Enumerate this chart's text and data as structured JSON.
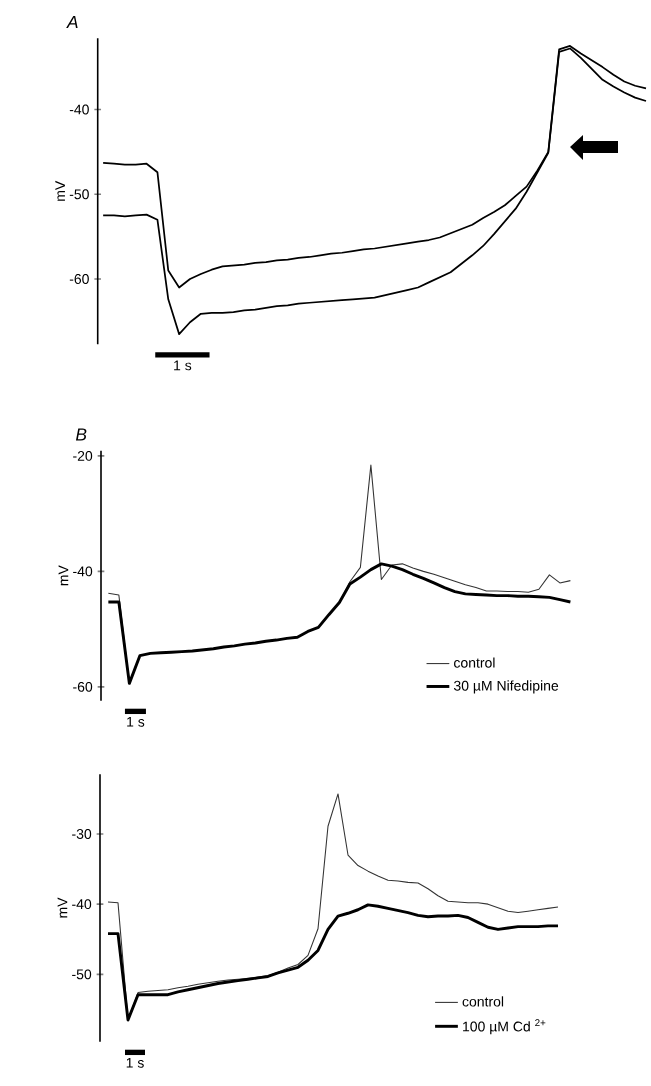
{
  "chart_data": [
    {
      "type": "line",
      "title": "A",
      "ylabel": "mV",
      "ylim": [
        -67.7,
        -31.6
      ],
      "yticks": [
        -60,
        -50,
        -40
      ],
      "tick_labels": "y",
      "annotations": [
        "1 s"
      ],
      "categories": [
        null,
        null,
        null,
        null,
        null,
        null,
        null,
        null,
        null,
        null,
        null,
        null,
        null,
        null,
        null,
        null,
        null,
        null,
        null,
        null,
        null,
        null,
        null,
        null,
        null,
        null,
        null,
        null,
        null,
        null,
        null,
        null,
        null,
        null,
        null,
        null,
        null,
        null,
        null,
        null,
        null,
        null,
        null,
        null,
        null,
        null,
        null,
        null,
        null,
        null,
        null
      ],
      "series": [
        {
          "color": "#000000",
          "values": [
            -46.3,
            -46.4,
            -46.5,
            -46.5,
            -46.4,
            -47.4,
            -59,
            -61.0,
            -60.0,
            -59.4,
            -58.9,
            -58.5,
            -58.4,
            -58.3,
            -58.1,
            -58.0,
            -57.8,
            -57.7,
            -57.5,
            -57.4,
            -57.2,
            -57.0,
            -56.9,
            -56.7,
            -56.5,
            -56.4,
            -56.2,
            -56.0,
            -55.8,
            -55.6,
            -55.4,
            -55.1,
            -54.6,
            -54.1,
            -53.6,
            -52.8,
            -52.1,
            -51.3,
            -50.2,
            -49.1,
            -47.2,
            -45.0,
            -32.9,
            -32.5,
            -33.4,
            -34.2,
            -35.0,
            -35.9,
            -36.7,
            -37.2,
            -37.5
          ]
        },
        {
          "color": "#000000",
          "values": [
            -52.5,
            -52.5,
            -52.6,
            -52.5,
            -52.4,
            -53.0,
            -62.4,
            -66.5,
            -65.1,
            -64.1,
            -64.0,
            -64.0,
            -63.9,
            -63.7,
            -63.6,
            -63.4,
            -63.2,
            -63.1,
            -62.9,
            -62.8,
            -62.7,
            -62.6,
            -62.5,
            -62.4,
            -62.3,
            -62.2,
            -61.9,
            -61.6,
            -61.3,
            -61.0,
            -60.4,
            -59.8,
            -59.2,
            -58.2,
            -57.2,
            -56.1,
            -54.7,
            -53.2,
            -51.7,
            -49.7,
            -47.4,
            -45.1,
            -33.2,
            -32.8,
            -33.9,
            -35.2,
            -36.5,
            -37.3,
            -38.0,
            -38.6,
            -39.0
          ]
        }
      ]
    },
    {
      "type": "line",
      "title": "B",
      "ylabel": "mV",
      "ylim": [
        -62.4,
        -19.1
      ],
      "yticks": [
        -60,
        -40,
        -20
      ],
      "tick_labels": "y",
      "legend": "bottom right",
      "annotations": [
        "1 s"
      ],
      "categories": [
        null,
        null,
        null,
        null,
        null,
        null,
        null,
        null,
        null,
        null,
        null,
        null,
        null,
        null,
        null,
        null,
        null,
        null,
        null,
        null,
        null,
        null,
        null,
        null,
        null,
        null,
        null,
        null,
        null,
        null,
        null,
        null,
        null,
        null,
        null,
        null,
        null,
        null,
        null,
        null,
        null,
        null,
        null,
        null,
        null
      ],
      "series": [
        {
          "name": "control",
          "color": "#333333",
          "values": [
            -43.8,
            -44.1,
            -59.4,
            -54.6,
            -54.2,
            -54.1,
            -54.0,
            -53.9,
            -53.8,
            -53.6,
            -53.4,
            -53.1,
            -52.9,
            -52.6,
            -52.4,
            -52.1,
            -51.9,
            -51.6,
            -51.4,
            -50.4,
            -49.7,
            -47.5,
            -45.4,
            -41.8,
            -39.3,
            -21.6,
            -41.4,
            -38.9,
            -38.7,
            -39.4,
            -40.0,
            -40.5,
            -41.1,
            -41.7,
            -42.3,
            -42.8,
            -43.4,
            -43.4,
            -43.5,
            -43.5,
            -43.6,
            -43.1,
            -40.6,
            -42.0,
            -41.6
          ]
        },
        {
          "name": "30 µM Nifedipine",
          "color": "#000000",
          "values": [
            -45.3,
            -45.3,
            -59.4,
            -54.6,
            -54.2,
            -54.1,
            -54.0,
            -53.9,
            -53.8,
            -53.6,
            -53.4,
            -53.1,
            -52.9,
            -52.6,
            -52.4,
            -52.1,
            -51.9,
            -51.6,
            -51.4,
            -50.4,
            -49.7,
            -47.5,
            -45.4,
            -42.2,
            -41.0,
            -39.7,
            -38.7,
            -39.1,
            -39.7,
            -40.5,
            -41.2,
            -42.0,
            -42.8,
            -43.5,
            -43.9,
            -44.0,
            -44.1,
            -44.2,
            -44.2,
            -44.3,
            -44.3,
            -44.4,
            -44.5,
            -44.9,
            -45.3
          ]
        }
      ]
    },
    {
      "type": "line",
      "ylabel": "mV",
      "ylim": [
        -59.6,
        -21.5
      ],
      "yticks": [
        -50,
        -40,
        -30
      ],
      "tick_labels": "y",
      "legend": "bottom right",
      "annotations": [
        "1 s"
      ],
      "categories": [
        null,
        null,
        null,
        null,
        null,
        null,
        null,
        null,
        null,
        null,
        null,
        null,
        null,
        null,
        null,
        null,
        null,
        null,
        null,
        null,
        null,
        null,
        null,
        null,
        null,
        null,
        null,
        null,
        null,
        null,
        null,
        null,
        null,
        null,
        null,
        null,
        null,
        null,
        null,
        null,
        null,
        null,
        null,
        null,
        null,
        null
      ],
      "series": [
        {
          "name": "control",
          "color": "#333333",
          "values": [
            -39.7,
            -39.8,
            -56.5,
            -52.6,
            -52.4,
            -52.3,
            -52.2,
            -51.9,
            -51.7,
            -51.4,
            -51.2,
            -51.0,
            -50.8,
            -50.7,
            -50.6,
            -50.4,
            -50.2,
            -49.7,
            -49.1,
            -48.6,
            -47.3,
            -43.5,
            -28.9,
            -24.3,
            -33.0,
            -34.5,
            -35.3,
            -36.0,
            -36.6,
            -36.7,
            -36.9,
            -37.0,
            -37.8,
            -38.8,
            -39.6,
            -39.7,
            -39.8,
            -39.8,
            -40.0,
            -40.5,
            -41.0,
            -41.2,
            -41.0,
            -40.8,
            -40.6,
            -40.4
          ]
        },
        {
          "name": "100 µM Cd $^{2+}$",
          "color": "#000000",
          "values": [
            -44.2,
            -44.2,
            -56.5,
            -52.9,
            -52.9,
            -52.9,
            -52.9,
            -52.5,
            -52.2,
            -51.9,
            -51.6,
            -51.3,
            -51.1,
            -50.9,
            -50.7,
            -50.5,
            -50.3,
            -49.8,
            -49.4,
            -49.0,
            -48.0,
            -46.6,
            -43.6,
            -41.7,
            -41.3,
            -40.8,
            -40.1,
            -40.3,
            -40.6,
            -40.9,
            -41.2,
            -41.6,
            -41.8,
            -41.7,
            -41.7,
            -41.6,
            -41.9,
            -42.6,
            -43.3,
            -43.6,
            -43.4,
            -43.2,
            -43.2,
            -43.2,
            -43.1,
            -43.1
          ]
        }
      ]
    }
  ]
}
